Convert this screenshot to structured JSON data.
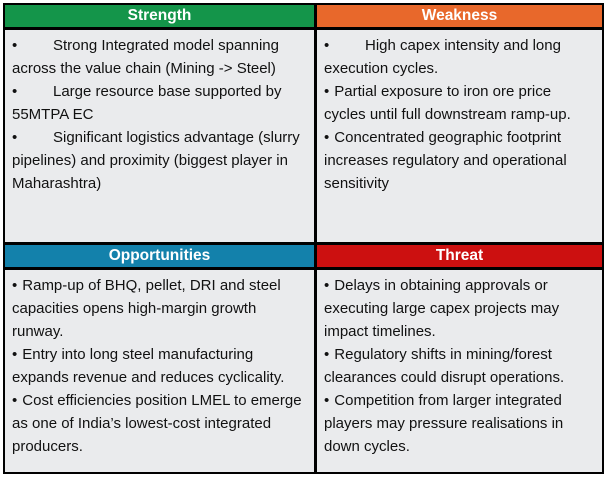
{
  "ui": {
    "bullet": "•"
  },
  "colors": {
    "strength": "#14954A",
    "weakness": "#E8682B",
    "opportunities": "#1381AB",
    "threat": "#CC1010",
    "body_bg": "#EAEBED",
    "border": "#000000",
    "header_text": "#FFFFFF"
  },
  "quadrants": [
    {
      "title": "Strength",
      "items": [
        {
          "text": "Strong Integrated model spanning across the value chain (Mining -> Steel)",
          "tabbed": true
        },
        {
          "text": "Large resource base supported by 55MTPA EC",
          "tabbed": true
        },
        {
          "text": "Significant logistics advantage (slurry pipelines) and proximity (biggest player in Maharashtra)",
          "tabbed": true
        }
      ]
    },
    {
      "title": "Weakness",
      "items": [
        {
          "text": "High capex intensity and long execution cycles.",
          "tabbed": true
        },
        {
          "text": "Partial exposure to iron ore price cycles until full downstream ramp-up.",
          "tabbed": false
        },
        {
          "text": "Concentrated geographic footprint increases regulatory and operational sensitivity",
          "tabbed": false
        }
      ]
    },
    {
      "title": "Opportunities",
      "items": [
        {
          "text": "Ramp-up of BHQ, pellet, DRI and steel capacities opens high-margin growth runway.",
          "tabbed": false
        },
        {
          "text": "Entry into long steel manufacturing expands revenue and reduces cyclicality.",
          "tabbed": false
        },
        {
          "text": "Cost efficiencies position LMEL to emerge as one of India’s lowest-cost integrated producers.",
          "tabbed": false
        }
      ]
    },
    {
      "title": "Threat",
      "items": [
        {
          "text": "Delays in obtaining approvals or executing large capex projects may impact timelines.",
          "tabbed": false
        },
        {
          "text": "Regulatory shifts in mining/forest clearances could disrupt operations.",
          "tabbed": false
        },
        {
          "text": "Competition from larger integrated players may pressure realisations in down cycles.",
          "tabbed": false
        }
      ]
    }
  ]
}
